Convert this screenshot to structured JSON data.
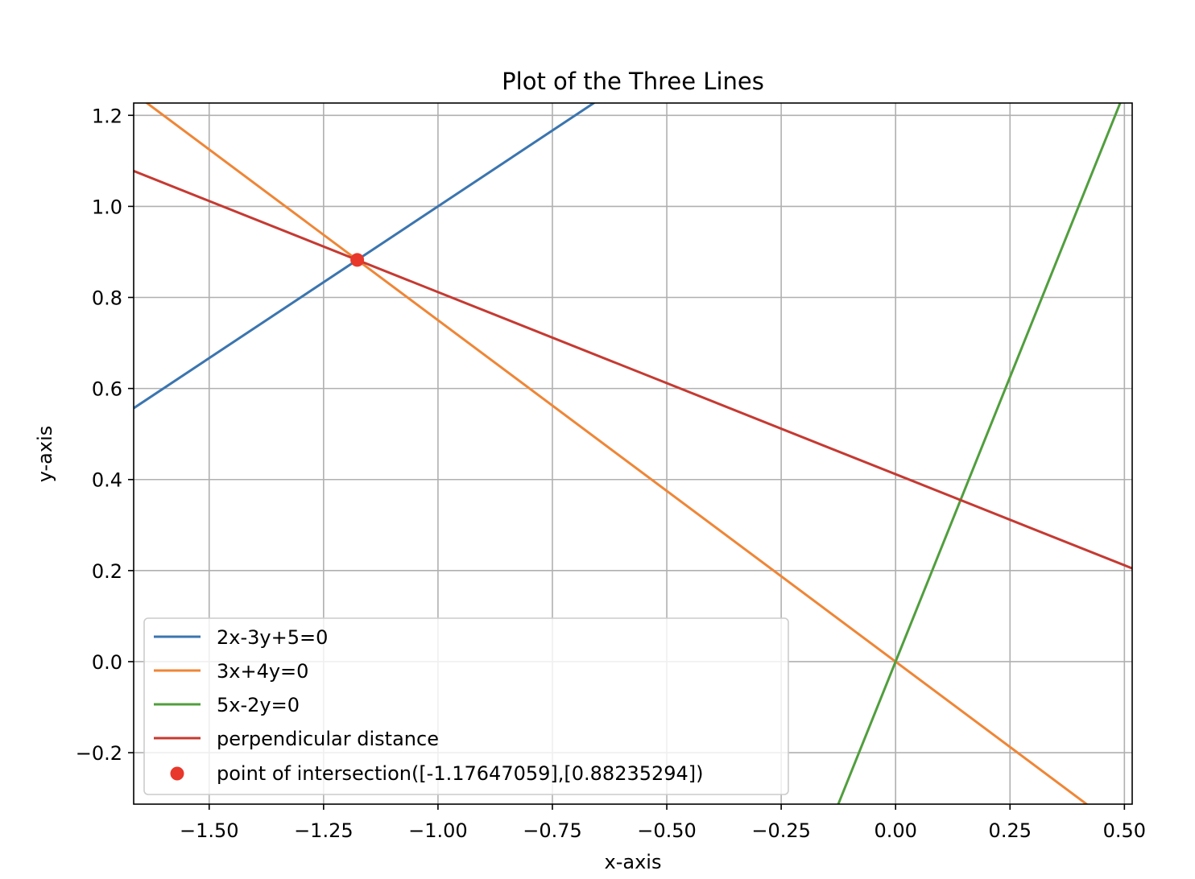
{
  "chart_data": {
    "type": "line",
    "title": "Plot of the Three Lines",
    "xlabel": "x-axis",
    "ylabel": "y-axis",
    "xlim": [
      -1.665,
      0.517
    ],
    "ylim": [
      -0.313,
      1.227
    ],
    "xticks": [
      -1.5,
      -1.25,
      -1.0,
      -0.75,
      -0.5,
      -0.25,
      0.0,
      0.25,
      0.5
    ],
    "xtick_labels": [
      "−1.50",
      "−1.25",
      "−1.00",
      "−0.75",
      "−0.50",
      "−0.25",
      "0.00",
      "0.25",
      "0.50"
    ],
    "yticks": [
      -0.2,
      0.0,
      0.2,
      0.4,
      0.6,
      0.8,
      1.0,
      1.2
    ],
    "ytick_labels": [
      "−0.2",
      "0.0",
      "0.2",
      "0.4",
      "0.6",
      "0.8",
      "1.0",
      "1.2"
    ],
    "grid": true,
    "legend_position": "lower-left",
    "series": [
      {
        "name": "2x-3y+5=0",
        "color": "#3b75af",
        "x": [
          -1.665,
          0.517
        ],
        "y": [
          0.5567,
          2.0113
        ]
      },
      {
        "name": "3x+4y=0",
        "color": "#ef8636",
        "x": [
          -1.665,
          0.517
        ],
        "y": [
          1.2488,
          -0.3878
        ]
      },
      {
        "name": "5x-2y=0",
        "color": "#519e3e",
        "x": [
          -0.1252,
          0.4908
        ],
        "y": [
          -0.313,
          1.227
        ]
      },
      {
        "name": "perpendicular distance",
        "color": "#c53a32",
        "x": [
          -1.665,
          0.517
        ],
        "y": [
          1.0778,
          0.2049
        ]
      }
    ],
    "points": [
      {
        "name": "point of intersection([-1.17647059],[0.88235294])",
        "color": "#e8372b",
        "x": -1.17647059,
        "y": 0.88235294
      }
    ]
  }
}
